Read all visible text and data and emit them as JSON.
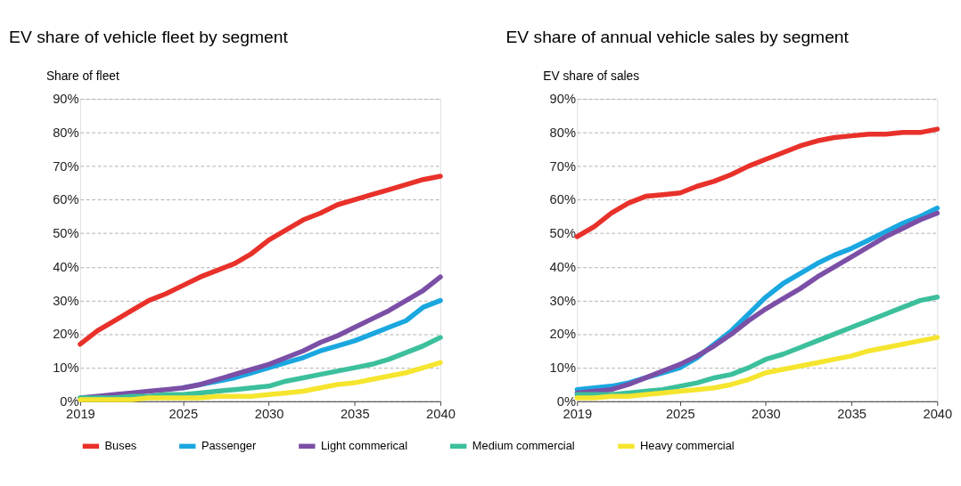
{
  "chart_data": [
    {
      "type": "line",
      "title": "EV share of vehicle fleet by segment",
      "ylabel": "Share of fleet",
      "x": [
        2019,
        2020,
        2021,
        2022,
        2023,
        2024,
        2025,
        2026,
        2027,
        2028,
        2029,
        2030,
        2031,
        2032,
        2033,
        2034,
        2035,
        2036,
        2037,
        2038,
        2039,
        2040
      ],
      "xlim": [
        2019,
        2040
      ],
      "xticks": [
        2019,
        2025,
        2030,
        2035,
        2040
      ],
      "ylim": [
        0,
        90
      ],
      "yticks": [
        {
          "value": 0,
          "label": "0%"
        },
        {
          "value": 10,
          "label": "10%"
        },
        {
          "value": 20,
          "label": "20%"
        },
        {
          "value": 30,
          "label": "30%"
        },
        {
          "value": 40,
          "label": "40%"
        },
        {
          "value": 50,
          "label": "50%"
        },
        {
          "value": 60,
          "label": "60%"
        },
        {
          "value": 70,
          "label": "70%"
        },
        {
          "value": 80,
          "label": "80%"
        },
        {
          "value": 90,
          "label": "90%"
        }
      ],
      "grid": "y",
      "legend": "bottom",
      "marker": "none",
      "line_style": "solid",
      "series": [
        {
          "name": "Buses",
          "color": "#e8312a",
          "values": [
            17,
            21,
            24,
            27,
            30,
            32,
            34.5,
            37,
            39,
            41,
            44,
            48,
            51,
            54,
            56,
            58.5,
            60,
            61.5,
            63,
            64.5,
            66,
            67
          ]
        },
        {
          "name": "Passenger",
          "color": "#1aa7e0",
          "values": [
            null,
            null,
            null,
            null,
            null,
            null,
            4,
            5,
            6,
            7,
            8.5,
            10,
            11.5,
            13,
            15,
            16.5,
            18,
            20,
            22,
            24,
            28,
            30
          ]
        },
        {
          "name": "Light commerical",
          "color": "#7b4fa6",
          "values": [
            1,
            1.5,
            2,
            2.5,
            3,
            3.5,
            4,
            5,
            6.5,
            8,
            9.5,
            11,
            13,
            15,
            17.5,
            19.5,
            22,
            24.5,
            27,
            30,
            33,
            37
          ]
        },
        {
          "name": "Medium commercial",
          "color": "#3cbf9c",
          "values": [
            1,
            1,
            1,
            1.5,
            1.5,
            2,
            2,
            2.5,
            3,
            3.5,
            4,
            4.5,
            6,
            7,
            8,
            9,
            10,
            11,
            12.5,
            14.5,
            16.5,
            19
          ]
        },
        {
          "name": "Heavy commercial",
          "color": "#f5e52e",
          "values": [
            0.5,
            0.5,
            0.5,
            0.5,
            1,
            1,
            1,
            1,
            1.5,
            1.5,
            1.5,
            2,
            2.5,
            3,
            4,
            5,
            5.5,
            6.5,
            7.5,
            8.5,
            10,
            11.5
          ]
        }
      ]
    },
    {
      "type": "line",
      "title": "EV share of annual vehicle sales by segment",
      "ylabel": "EV share of sales",
      "x": [
        2019,
        2020,
        2021,
        2022,
        2023,
        2024,
        2025,
        2026,
        2027,
        2028,
        2029,
        2030,
        2031,
        2032,
        2033,
        2034,
        2035,
        2036,
        2037,
        2038,
        2039,
        2040
      ],
      "xlim": [
        2019,
        2040
      ],
      "xticks": [
        2019,
        2025,
        2030,
        2035,
        2040
      ],
      "ylim": [
        0,
        90
      ],
      "yticks": [
        {
          "value": 0,
          "label": "0%"
        },
        {
          "value": 10,
          "label": "10%"
        },
        {
          "value": 20,
          "label": "20%"
        },
        {
          "value": 30,
          "label": "30%"
        },
        {
          "value": 40,
          "label": "40%"
        },
        {
          "value": 50,
          "label": "50%"
        },
        {
          "value": 60,
          "label": "60%"
        },
        {
          "value": 70,
          "label": "70%"
        },
        {
          "value": 80,
          "label": "80%"
        },
        {
          "value": 90,
          "label": "90%"
        }
      ],
      "grid": "y",
      "legend": "bottom",
      "marker": "none",
      "line_style": "solid",
      "series": [
        {
          "name": "Buses",
          "color": "#e8312a",
          "values": [
            49,
            52,
            56,
            59,
            61,
            61.5,
            62,
            64,
            65.5,
            67.5,
            70,
            72,
            74,
            76,
            77.5,
            78.5,
            79,
            79.5,
            79.5,
            80,
            80,
            81
          ]
        },
        {
          "name": "Passenger",
          "color": "#1aa7e0",
          "values": [
            3.5,
            4,
            4.5,
            5.5,
            7,
            8.5,
            10,
            13,
            17,
            21,
            26,
            31,
            35,
            38,
            41,
            43.5,
            45.5,
            48,
            50.5,
            53,
            55,
            57.5
          ]
        },
        {
          "name": "Light commerical",
          "color": "#7b4fa6",
          "values": [
            2.5,
            3,
            3.5,
            5,
            7,
            9,
            11,
            13.5,
            16.5,
            20,
            24,
            27.5,
            30.5,
            33.5,
            37,
            40,
            43,
            46,
            49,
            51.5,
            54,
            56
          ]
        },
        {
          "name": "Medium commercial",
          "color": "#3cbf9c",
          "values": [
            2,
            2,
            2,
            2.5,
            3,
            3.5,
            4.5,
            5.5,
            7,
            8,
            10,
            12.5,
            14,
            16,
            18,
            20,
            22,
            24,
            26,
            28,
            30,
            31
          ]
        },
        {
          "name": "Heavy commercial",
          "color": "#f5e52e",
          "values": [
            1,
            1,
            1.5,
            1.5,
            2,
            2.5,
            3,
            3.5,
            4,
            5,
            6.5,
            8.5,
            9.5,
            10.5,
            11.5,
            12.5,
            13.5,
            15,
            16,
            17,
            18,
            19
          ]
        }
      ]
    }
  ]
}
